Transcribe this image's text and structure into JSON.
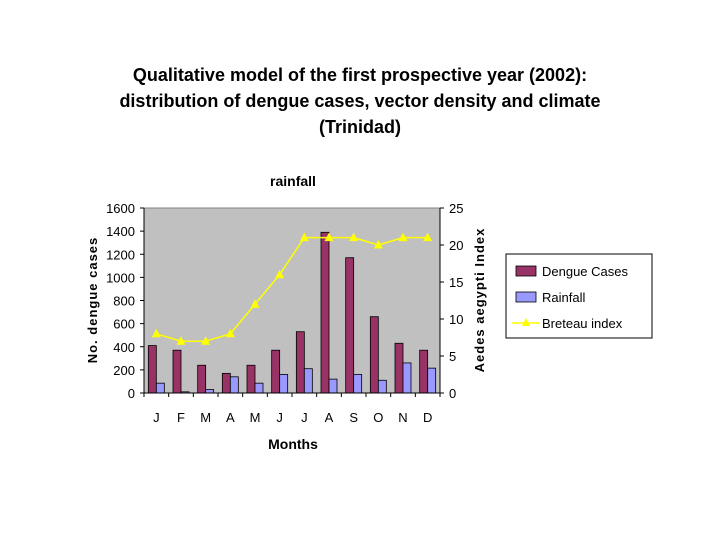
{
  "chart_data": {
    "type": "bar",
    "title_lines": [
      "Qualitative model of the first prospective year (2002):",
      "distribution of dengue cases, vector density and climate",
      "(Trinidad)"
    ],
    "subtitle": "rainfall",
    "categories": [
      "J",
      "F",
      "M",
      "A",
      "M",
      "J",
      "J",
      "A",
      "S",
      "O",
      "N",
      "D"
    ],
    "xlabel": "Months",
    "ylabel": "No. dengue cases",
    "y2label": "Aedes aegypti Index",
    "ylim": [
      0,
      1600
    ],
    "y_ticks": [
      "0",
      "200",
      "400",
      "600",
      "800",
      "1000",
      "1200",
      "1400",
      "1600"
    ],
    "y2lim": [
      0,
      25
    ],
    "y2_ticks": [
      "0",
      "5",
      "10",
      "15",
      "20",
      "25"
    ],
    "series": [
      {
        "name": "Dengue Cases",
        "type": "bar",
        "axis": "left",
        "color": "#993366",
        "values": [
          410,
          370,
          240,
          170,
          240,
          370,
          530,
          1390,
          1170,
          660,
          430,
          370
        ]
      },
      {
        "name": "Rainfall",
        "type": "bar",
        "axis": "left",
        "color": "#9999ff",
        "values": [
          85,
          10,
          30,
          140,
          85,
          160,
          210,
          120,
          160,
          110,
          260,
          215
        ]
      },
      {
        "name": "Breteau index",
        "type": "line",
        "axis": "right",
        "color": "#ffff00",
        "values": [
          8,
          7,
          7,
          8,
          12,
          16,
          21,
          21,
          21,
          20,
          21,
          21
        ]
      }
    ],
    "plot_background": "#c0c0c0",
    "grid": false,
    "legend_position": "right"
  }
}
